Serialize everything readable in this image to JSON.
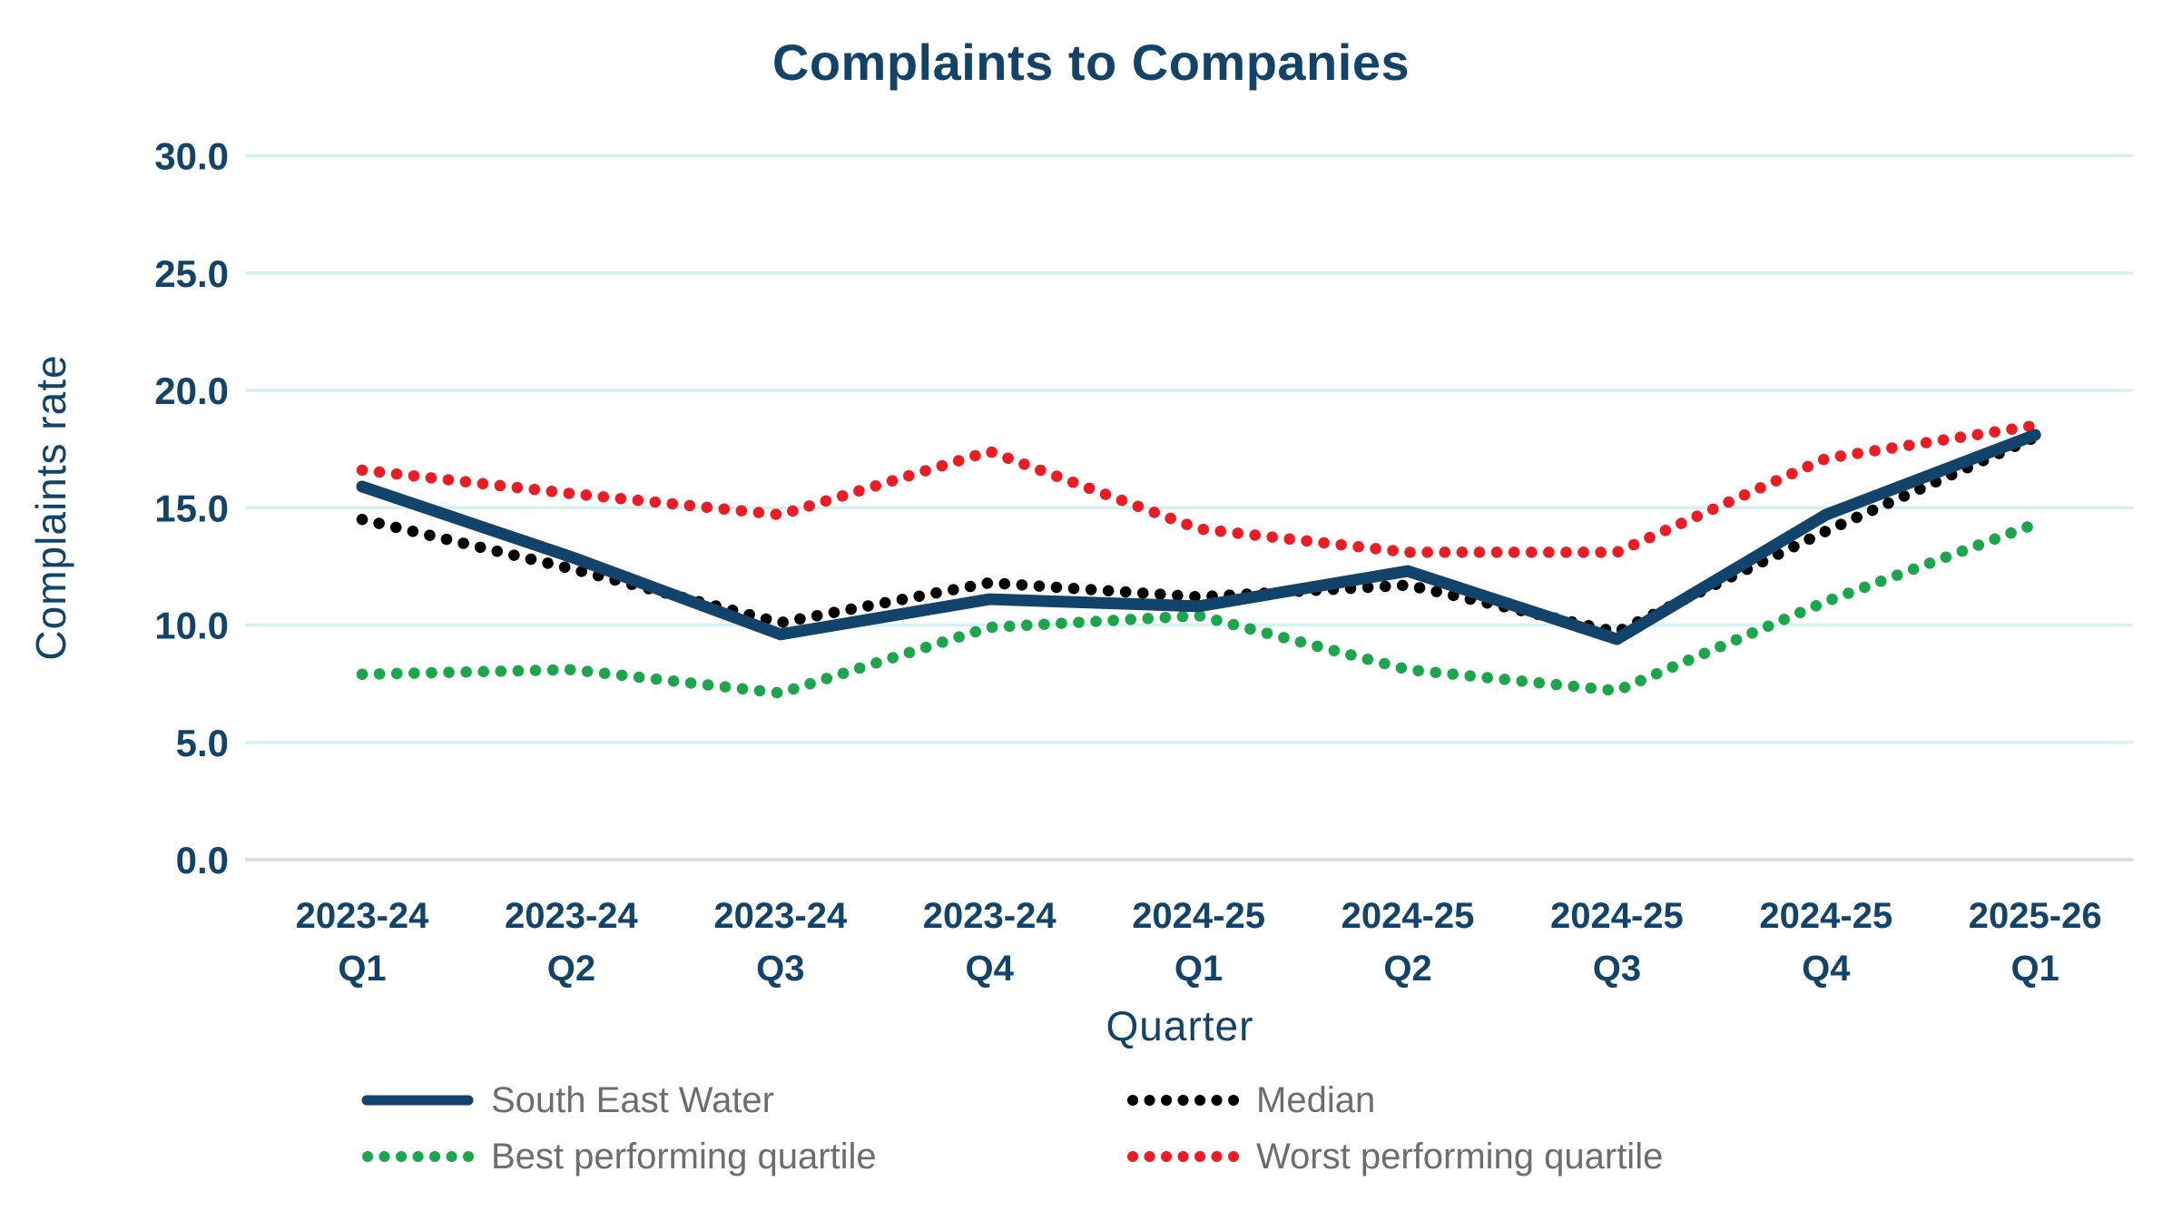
{
  "chart_data": {
    "type": "line",
    "title": "Complaints to Companies",
    "xlabel": "Quarter",
    "ylabel": "Complaints rate",
    "ylim": [
      0,
      30
    ],
    "ytick_step": 5,
    "ytick_labels": [
      "0.0",
      "5.0",
      "10.0",
      "15.0",
      "20.0",
      "25.0",
      "30.0"
    ],
    "grid": "horizontal",
    "legend_position": "bottom",
    "categories": [
      "2023-24 Q1",
      "2023-24 Q2",
      "2023-24 Q3",
      "2023-24 Q4",
      "2024-25 Q1",
      "2024-25 Q2",
      "2024-25 Q3",
      "2024-25 Q4",
      "2025-26 Q1"
    ],
    "series": [
      {
        "name": "South East Water",
        "style": "solid",
        "color": "#12436B",
        "values": [
          15.9,
          12.9,
          9.6,
          11.1,
          10.8,
          12.3,
          9.4,
          14.7,
          18.1
        ]
      },
      {
        "name": "Median",
        "style": "dotted",
        "color": "#000000",
        "values": [
          14.5,
          12.4,
          10.1,
          11.8,
          11.2,
          11.7,
          9.7,
          14.0,
          18.0
        ]
      },
      {
        "name": "Best performing quartile",
        "style": "dotted",
        "color": "#1AA64A",
        "values": [
          7.9,
          8.1,
          7.1,
          9.9,
          10.4,
          8.1,
          7.2,
          11.0,
          14.3
        ]
      },
      {
        "name": "Worst performing quartile",
        "style": "dotted",
        "color": "#ED1C24",
        "values": [
          16.6,
          15.6,
          14.7,
          17.4,
          14.1,
          13.1,
          13.1,
          17.1,
          18.5
        ]
      }
    ]
  },
  "colors": {
    "title": "#12436B",
    "axis_text": "#12436B",
    "legend_text": "#6D6D6D",
    "gridline": "#D4F1F4",
    "zeroline": "#D9D9D9",
    "background": "#FFFFFF"
  }
}
